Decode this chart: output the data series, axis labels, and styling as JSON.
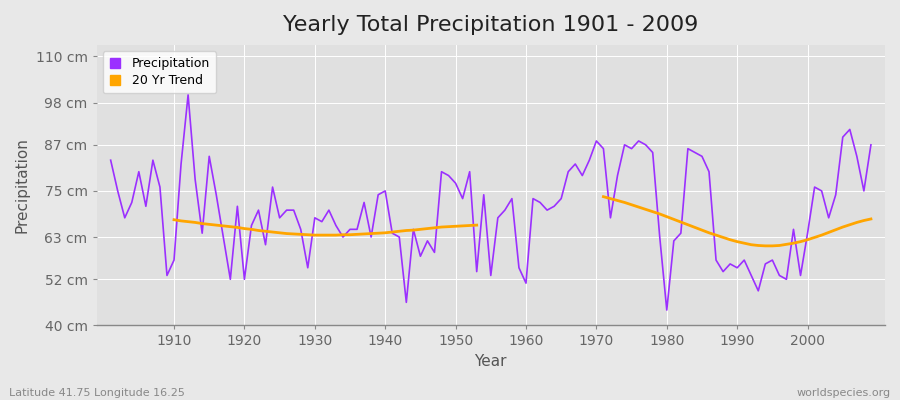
{
  "title": "Yearly Total Precipitation 1901 - 2009",
  "xlabel": "Year",
  "ylabel": "Precipitation",
  "subtitle_left": "Latitude 41.75 Longitude 16.25",
  "subtitle_right": "worldspecies.org",
  "years": [
    1901,
    1902,
    1903,
    1904,
    1905,
    1906,
    1907,
    1908,
    1909,
    1910,
    1911,
    1912,
    1913,
    1914,
    1915,
    1916,
    1917,
    1918,
    1919,
    1920,
    1921,
    1922,
    1923,
    1924,
    1925,
    1926,
    1927,
    1928,
    1929,
    1930,
    1931,
    1932,
    1933,
    1934,
    1935,
    1936,
    1937,
    1938,
    1939,
    1940,
    1941,
    1942,
    1943,
    1944,
    1945,
    1946,
    1947,
    1948,
    1949,
    1950,
    1951,
    1952,
    1953,
    1954,
    1955,
    1956,
    1957,
    1958,
    1959,
    1960,
    1961,
    1962,
    1963,
    1964,
    1965,
    1966,
    1967,
    1968,
    1969,
    1970,
    1971,
    1972,
    1973,
    1974,
    1975,
    1976,
    1977,
    1978,
    1979,
    1980,
    1981,
    1982,
    1983,
    1984,
    1985,
    1986,
    1987,
    1988,
    1989,
    1990,
    1991,
    1992,
    1993,
    1994,
    1995,
    1996,
    1997,
    1998,
    1999,
    2000,
    2001,
    2002,
    2003,
    2004,
    2005,
    2006,
    2007,
    2008,
    2009
  ],
  "precipitation": [
    83,
    75,
    68,
    72,
    80,
    71,
    83,
    76,
    53,
    57,
    82,
    100,
    78,
    64,
    84,
    74,
    63,
    52,
    71,
    52,
    66,
    70,
    61,
    76,
    68,
    70,
    70,
    65,
    55,
    68,
    67,
    70,
    66,
    63,
    65,
    65,
    72,
    63,
    74,
    75,
    64,
    63,
    46,
    65,
    58,
    62,
    59,
    80,
    79,
    77,
    73,
    80,
    54,
    74,
    53,
    68,
    70,
    73,
    55,
    51,
    73,
    72,
    70,
    71,
    73,
    80,
    82,
    79,
    83,
    88,
    86,
    68,
    79,
    87,
    86,
    88,
    87,
    85,
    63,
    44,
    62,
    64,
    86,
    85,
    84,
    80,
    57,
    54,
    56,
    55,
    57,
    53,
    49,
    56,
    57,
    53,
    52,
    65,
    53,
    64,
    76,
    75,
    68,
    74,
    89,
    91,
    84,
    75,
    87
  ],
  "trend_years": [
    1910,
    1911,
    1912,
    1913,
    1914,
    1915,
    1916,
    1917,
    1918,
    1919,
    1920,
    1921,
    1922,
    1923,
    1924,
    1925,
    1926,
    1927,
    1928,
    1929,
    1930,
    1931,
    1932,
    1933,
    1934,
    1935,
    1936,
    1937,
    1938,
    1939,
    1940,
    1941,
    1942,
    1943,
    1944,
    1945,
    1946,
    1947,
    1948,
    1949,
    1950,
    1951,
    1952,
    1953,
    1971,
    1972,
    1973,
    1974,
    1975,
    1976,
    1977,
    1978,
    1979,
    1980,
    1981,
    1982,
    1983,
    1984,
    1985,
    1986,
    1987,
    1988,
    1989,
    1990,
    1991,
    1992,
    1993,
    1994,
    1995,
    1996,
    1997,
    1998,
    1999,
    2000,
    2001,
    2002,
    2003,
    2004,
    2005,
    2006,
    2007,
    2008,
    2009
  ],
  "trend_vals": [
    67.5,
    67.2,
    67.0,
    66.8,
    66.5,
    66.3,
    66.1,
    65.9,
    65.7,
    65.5,
    65.2,
    65.0,
    64.7,
    64.5,
    64.3,
    64.1,
    63.9,
    63.8,
    63.7,
    63.6,
    63.5,
    63.5,
    63.5,
    63.5,
    63.6,
    63.6,
    63.7,
    63.8,
    63.9,
    64.0,
    64.1,
    64.3,
    64.5,
    64.7,
    64.8,
    65.0,
    65.2,
    65.4,
    65.6,
    65.7,
    65.8,
    65.9,
    66.0,
    66.1,
    73.5,
    73.0,
    72.5,
    72.0,
    71.4,
    70.8,
    70.2,
    69.6,
    69.0,
    68.3,
    67.6,
    66.9,
    66.2,
    65.5,
    64.8,
    64.1,
    63.5,
    62.9,
    62.3,
    61.8,
    61.4,
    61.0,
    60.8,
    60.7,
    60.7,
    60.8,
    61.1,
    61.4,
    61.8,
    62.3,
    62.9,
    63.5,
    64.2,
    64.9,
    65.6,
    66.2,
    66.8,
    67.3,
    67.7
  ],
  "precip_color": "#9B30FF",
  "trend_color": "#FFA500",
  "bg_color": "#E8E8E8",
  "plot_bg_color": "#E0E0E0",
  "grid_color": "#FFFFFF",
  "ylim": [
    40,
    113
  ],
  "yticks": [
    40,
    52,
    63,
    75,
    87,
    98,
    110
  ],
  "ytick_labels": [
    "40 cm",
    "52 cm",
    "63 cm",
    "75 cm",
    "87 cm",
    "98 cm",
    "110 cm"
  ],
  "xlim": [
    1899,
    2011
  ],
  "xticks": [
    1910,
    1920,
    1930,
    1940,
    1950,
    1960,
    1970,
    1980,
    1990,
    2000
  ],
  "linewidth_precip": 1.2,
  "linewidth_trend": 2.0,
  "title_fontsize": 16,
  "axis_label_fontsize": 11,
  "tick_fontsize": 10,
  "legend_fontsize": 9
}
